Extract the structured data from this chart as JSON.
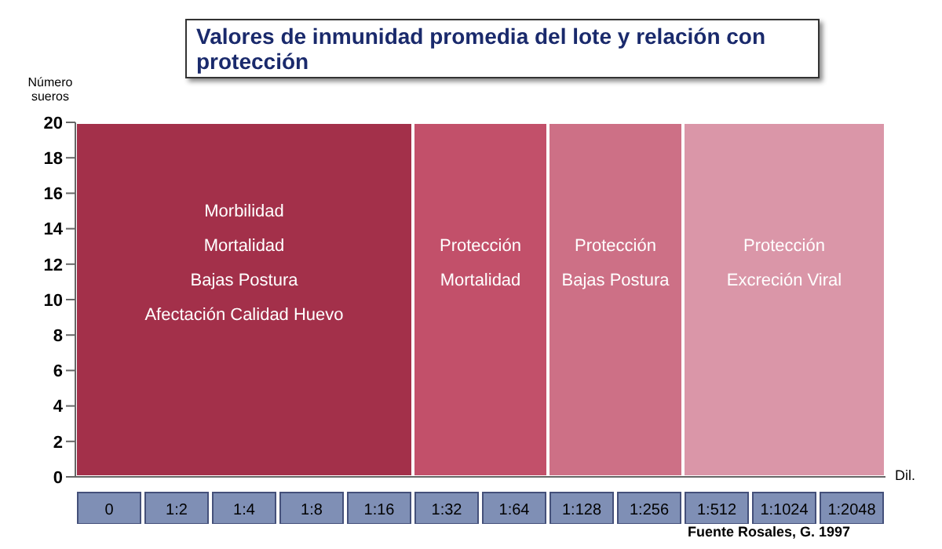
{
  "chart_data": {
    "type": "bar",
    "title": "Valores de inmunidad promedia del lote y relación con protección",
    "ylabel": "Número sueros",
    "xlabel": "Dil.",
    "categories": [
      "0",
      "1:2",
      "1:4",
      "1:8",
      "1:16",
      "1:32",
      "1:64",
      "1:128",
      "1:256",
      "1:512",
      "1:1024",
      "1:2048"
    ],
    "ylim": [
      0,
      20
    ],
    "yticks": [
      0,
      2,
      4,
      6,
      8,
      10,
      12,
      14,
      16,
      18,
      20
    ],
    "bands": [
      {
        "axis": "x",
        "from": "0",
        "to": "1:16",
        "label": "Morbilidad\nMortalidad\nBajas Postura\nAfectación Calidad Huevo",
        "color": "#a3304a"
      },
      {
        "axis": "x",
        "from": "1:32",
        "to": "1:64",
        "label": "Protección\nMortalidad",
        "color": "#c2506a"
      },
      {
        "axis": "x",
        "from": "1:128",
        "to": "1:256",
        "label": "Protección\nBajas Postura",
        "color": "#cd7086"
      },
      {
        "axis": "x",
        "from": "1:512",
        "to": "1:2048",
        "label": "Protección\nExcreción Viral",
        "color": "#da96a8"
      }
    ],
    "annotations": [
      "Fuente Rosales, G. 1997"
    ]
  }
}
